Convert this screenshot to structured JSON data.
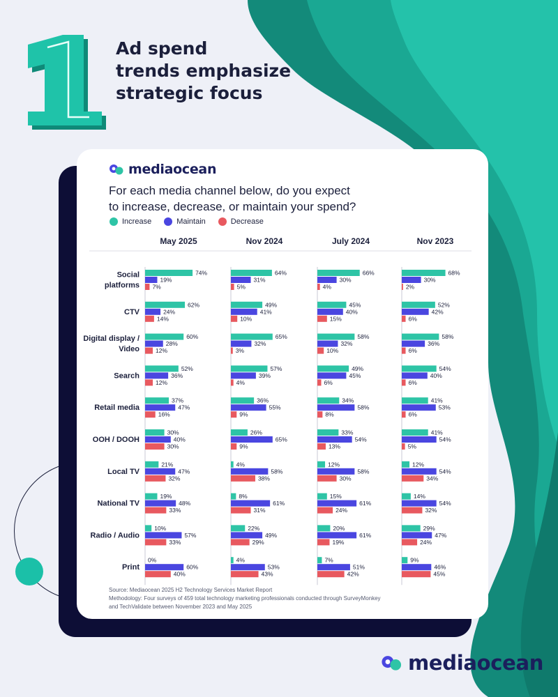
{
  "headline": [
    "Ad spend",
    "trends emphasize",
    "strategic focus"
  ],
  "number_badge": "1",
  "brand": "mediaocean",
  "question": [
    "For each media channel below, do you expect",
    "to increase, decrease, or maintain your spend?"
  ],
  "colors": {
    "increase": "#2ec4a6",
    "maintain": "#4a46e0",
    "decrease": "#e8595f",
    "teal": "#128f7e",
    "navy": "#0d0e36"
  },
  "legend": [
    {
      "label": "Increase",
      "color": "#2ec4a6"
    },
    {
      "label": "Maintain",
      "color": "#4a46e0"
    },
    {
      "label": "Decrease",
      "color": "#e8595f"
    }
  ],
  "chart_data": {
    "type": "bar",
    "orientation": "horizontal",
    "panels": [
      "May 2025",
      "Nov 2024",
      "July 2024",
      "Nov 2023"
    ],
    "categories": [
      "Social platforms",
      "CTV",
      "Digital display / Video",
      "Search",
      "Retail media",
      "OOH / DOOH",
      "Local TV",
      "National TV",
      "Radio / Audio",
      "Print"
    ],
    "series_names": [
      "Increase",
      "Maintain",
      "Decrease"
    ],
    "values": {
      "May 2025": {
        "Increase": [
          74,
          62,
          60,
          52,
          37,
          30,
          21,
          19,
          10,
          0
        ],
        "Maintain": [
          19,
          24,
          28,
          36,
          47,
          40,
          47,
          48,
          57,
          60
        ],
        "Decrease": [
          7,
          14,
          12,
          12,
          16,
          30,
          32,
          33,
          33,
          40
        ]
      },
      "Nov 2024": {
        "Increase": [
          64,
          49,
          65,
          57,
          36,
          26,
          4,
          8,
          22,
          4
        ],
        "Maintain": [
          31,
          41,
          32,
          39,
          55,
          65,
          58,
          61,
          49,
          53
        ],
        "Decrease": [
          5,
          10,
          3,
          4,
          9,
          9,
          38,
          31,
          29,
          43
        ]
      },
      "July 2024": {
        "Increase": [
          66,
          45,
          58,
          49,
          34,
          33,
          12,
          15,
          20,
          7
        ],
        "Maintain": [
          30,
          40,
          32,
          45,
          58,
          54,
          58,
          61,
          61,
          51
        ],
        "Decrease": [
          4,
          15,
          10,
          6,
          8,
          13,
          30,
          24,
          19,
          42
        ]
      },
      "Nov 2023": {
        "Increase": [
          68,
          52,
          58,
          54,
          41,
          41,
          12,
          14,
          29,
          9
        ],
        "Maintain": [
          30,
          42,
          36,
          40,
          53,
          54,
          54,
          54,
          47,
          46
        ],
        "Decrease": [
          2,
          6,
          6,
          6,
          6,
          5,
          34,
          32,
          24,
          45
        ]
      }
    },
    "unit": "%"
  },
  "footnote": [
    "Source: Mediaocean 2025 H2 Technology Services Market Report",
    "Methodology: Four surveys of 459 total technology marketing professionals conducted through SurveyMonkey",
    "and TechValidate between November 2023 and May 2025"
  ]
}
